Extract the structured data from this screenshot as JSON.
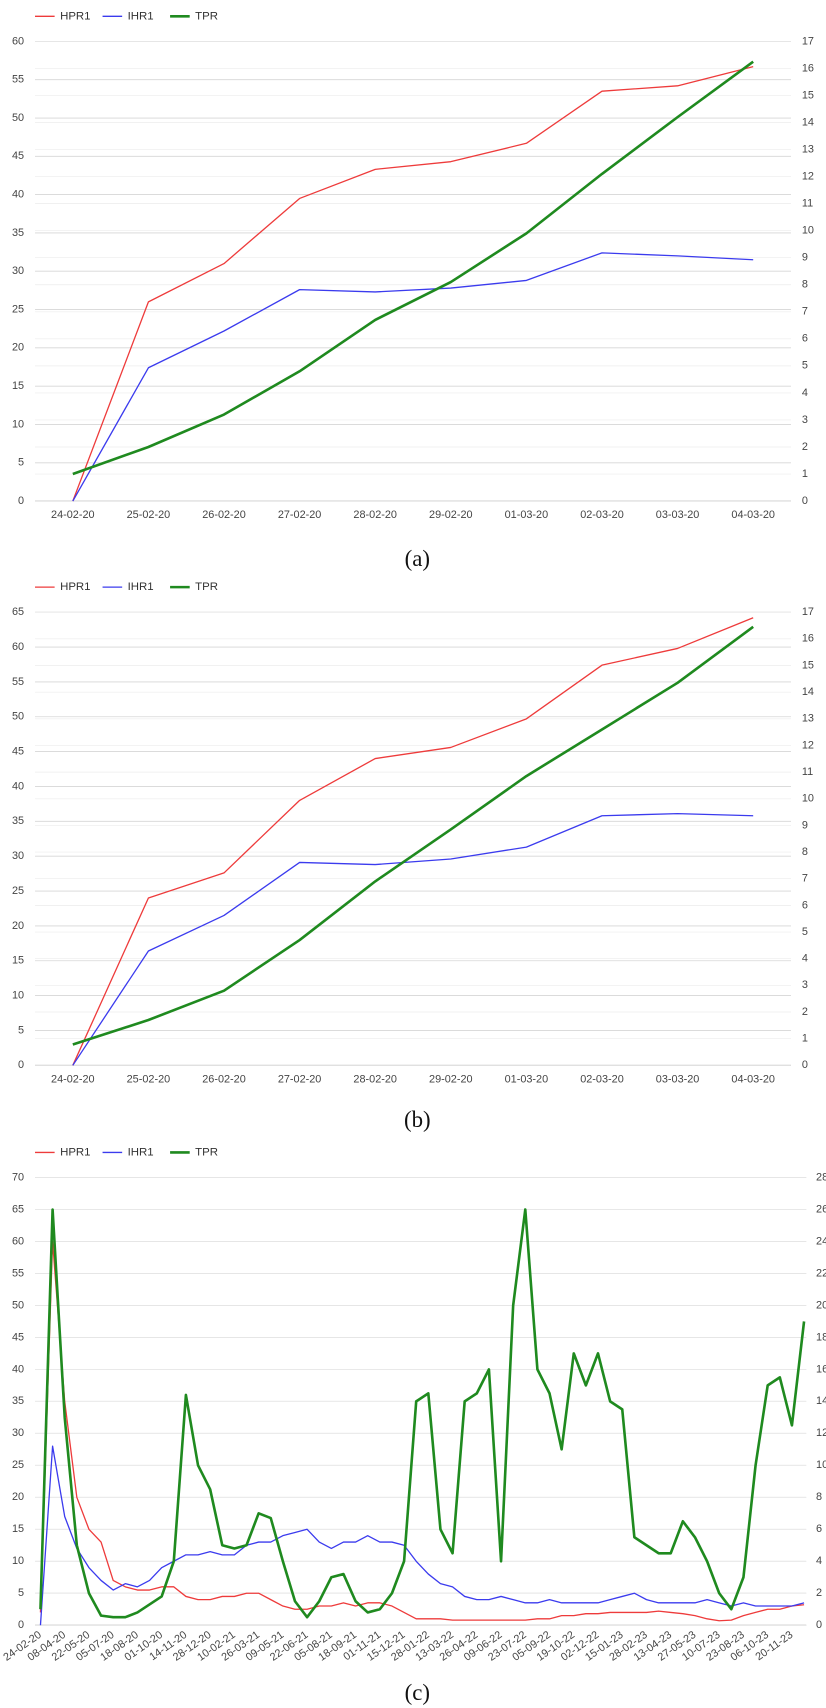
{
  "chart_data": [
    {
      "type": "line",
      "caption": "(a)",
      "categories": [
        "24-02-20",
        "25-02-20",
        "26-02-20",
        "27-02-20",
        "28-02-20",
        "29-02-20",
        "01-03-20",
        "02-03-20",
        "03-03-20",
        "04-03-20"
      ],
      "series": [
        {
          "name": "HPR1",
          "color": "#ee3b3b",
          "axis": "y",
          "values": [
            0,
            26,
            31,
            39.5,
            43.3,
            44.3,
            46.7,
            53.5,
            54.2,
            56.7
          ]
        },
        {
          "name": "IHR1",
          "color": "#3b3bee",
          "axis": "y",
          "values": [
            0,
            17.4,
            22.2,
            27.6,
            27.3,
            27.8,
            28.8,
            32.4,
            32,
            31.5
          ]
        },
        {
          "name": "TPR",
          "color": "#1f8a1f",
          "axis": "y2",
          "values": [
            1.0,
            2.0,
            3.2,
            4.8,
            6.7,
            8.1,
            9.9,
            12.1,
            14.2,
            16.25
          ]
        }
      ],
      "ylim": [
        0,
        60
      ],
      "yticks": [
        0,
        5,
        10,
        15,
        20,
        25,
        30,
        35,
        40,
        45,
        50,
        55,
        60
      ],
      "y2lim": [
        0,
        17
      ],
      "y2ticks": [
        0,
        1,
        2,
        3,
        4,
        5,
        6,
        7,
        8,
        9,
        10,
        11,
        12,
        13,
        14,
        15,
        16,
        17
      ],
      "grid": true,
      "legend": "top-left"
    },
    {
      "type": "line",
      "caption": "(b)",
      "categories": [
        "24-02-20",
        "25-02-20",
        "26-02-20",
        "27-02-20",
        "28-02-20",
        "29-02-20",
        "01-03-20",
        "02-03-20",
        "03-03-20",
        "04-03-20"
      ],
      "series": [
        {
          "name": "HPR1",
          "color": "#ee3b3b",
          "axis": "y",
          "values": [
            0,
            24,
            27.6,
            38,
            44,
            45.6,
            49.7,
            57.4,
            59.8,
            64.2
          ]
        },
        {
          "name": "IHR1",
          "color": "#3b3bee",
          "axis": "y",
          "values": [
            0,
            16.4,
            21.5,
            29.1,
            28.8,
            29.6,
            31.3,
            35.8,
            36.1,
            35.8
          ]
        },
        {
          "name": "TPR",
          "color": "#1f8a1f",
          "axis": "y2",
          "values": [
            0.78,
            1.7,
            2.8,
            4.7,
            6.9,
            8.85,
            10.85,
            12.6,
            14.35,
            16.45
          ]
        }
      ],
      "ylim": [
        0,
        65
      ],
      "yticks": [
        0,
        5,
        10,
        15,
        20,
        25,
        30,
        35,
        40,
        45,
        50,
        55,
        60,
        65
      ],
      "y2lim": [
        0,
        17
      ],
      "y2ticks": [
        0,
        1,
        2,
        3,
        4,
        5,
        6,
        7,
        8,
        9,
        10,
        11,
        12,
        13,
        14,
        15,
        16,
        17
      ],
      "grid": true,
      "legend": "top-left"
    },
    {
      "type": "line",
      "caption": "(c)",
      "categories": [
        "24-02-20",
        null,
        "08-04-20",
        null,
        "22-05-20",
        null,
        "05-07-20",
        null,
        "18-08-20",
        null,
        "01-10-20",
        null,
        "14-11-20",
        null,
        "28-12-20",
        null,
        "10-02-21",
        null,
        "26-03-21",
        null,
        "09-05-21",
        null,
        "22-06-21",
        null,
        "05-08-21",
        null,
        "18-09-21",
        null,
        "01-11-21",
        null,
        "15-12-21",
        null,
        "28-01-22",
        null,
        "13-03-22",
        null,
        "26-04-22",
        null,
        "09-06-22",
        null,
        "23-07-22",
        null,
        "05-09-22",
        null,
        "19-10-22",
        null,
        "02-12-22",
        null,
        "15-01-23",
        null,
        "28-02-23",
        null,
        "13-04-23",
        null,
        "27-05-23",
        null,
        "10-07-23",
        null,
        "23-08-23",
        null,
        "06-10-23",
        null,
        "20-11-23",
        null
      ],
      "series": [
        {
          "name": "HPR1",
          "color": "#ee3b3b",
          "axis": "y",
          "values": [
            2,
            60,
            35,
            20,
            15,
            13,
            7,
            6,
            5.5,
            5.5,
            6,
            6,
            4.5,
            4,
            4,
            4.5,
            4.5,
            5,
            5,
            4,
            3,
            2.5,
            2.5,
            3,
            3,
            3.5,
            3,
            3.5,
            3.5,
            3,
            2,
            1,
            1,
            1,
            0.8,
            0.8,
            0.8,
            0.8,
            0.8,
            0.8,
            0.8,
            1,
            1,
            1.5,
            1.5,
            1.8,
            1.8,
            2,
            2,
            2,
            2,
            2.2,
            2,
            1.8,
            1.5,
            1,
            0.7,
            0.8,
            1.5,
            2,
            2.5,
            2.5,
            3,
            3.2
          ]
        },
        {
          "name": "IHR1",
          "color": "#3b3bee",
          "axis": "y",
          "values": [
            0,
            28,
            17,
            12,
            9,
            7,
            5.5,
            6.5,
            6,
            7,
            9,
            10,
            11,
            11,
            11.5,
            11,
            11,
            12.5,
            13,
            13,
            14,
            14.5,
            15,
            13,
            12,
            13,
            13,
            14,
            13,
            13,
            12.5,
            10,
            8,
            6.5,
            6,
            4.5,
            4,
            4,
            4.5,
            4,
            3.5,
            3.5,
            4,
            3.5,
            3.5,
            3.5,
            3.5,
            4,
            4.5,
            5,
            4,
            3.5,
            3.5,
            3.5,
            3.5,
            4,
            3.5,
            3,
            3.5,
            3,
            3,
            3,
            3,
            3.5
          ]
        },
        {
          "name": "TPR",
          "color": "#1f8a1f",
          "axis": "y2",
          "values": [
            1,
            26,
            13,
            5,
            2,
            0.6,
            0.5,
            0.5,
            0.8,
            1.3,
            1.8,
            4,
            14.4,
            10,
            8.5,
            5,
            4.8,
            5,
            7,
            6.7,
            4,
            1.5,
            0.5,
            1.5,
            3,
            3.2,
            1.5,
            0.8,
            1,
            2,
            4,
            14,
            14.5,
            6,
            4.5,
            14,
            14.5,
            16,
            4,
            20,
            26,
            16,
            14.5,
            11,
            17,
            15,
            17,
            14,
            13.5,
            5.5,
            5,
            4.5,
            4.5,
            6.5,
            5.5,
            4,
            2,
            1,
            3,
            10,
            15,
            15.5,
            12.5,
            19
          ]
        }
      ],
      "ylim": [
        0,
        70
      ],
      "yticks": [
        0,
        5,
        10,
        15,
        20,
        25,
        30,
        35,
        40,
        45,
        50,
        55,
        60,
        65,
        70
      ],
      "y2lim": [
        0,
        28
      ],
      "y2ticks": [
        0,
        2,
        4,
        6,
        8,
        10,
        12,
        14,
        16,
        18,
        20,
        22,
        24,
        26,
        28
      ],
      "grid": true,
      "legend": "top-left"
    }
  ]
}
